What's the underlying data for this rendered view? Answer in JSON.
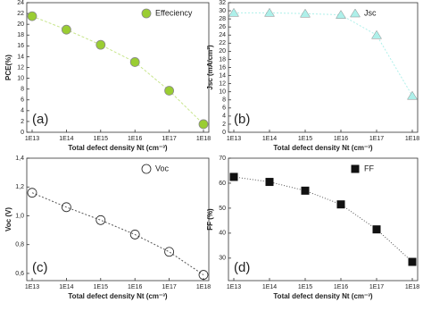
{
  "chart_data": [
    {
      "type": "line",
      "panel_label": "(a)",
      "xlabel": "Total defect density Nt (cm⁻³)",
      "ylabel": "PCE(%)",
      "categories": [
        "1E13",
        "1E14",
        "1E15",
        "1E16",
        "1E17",
        "1E18"
      ],
      "series": [
        {
          "name": "Effeciency",
          "color": "#9acd32",
          "values": [
            21.5,
            19,
            16.2,
            13,
            7.7,
            1.5
          ]
        }
      ],
      "marker": "circle",
      "marker_filled": true,
      "line_dash": "3,2",
      "line_color": "#c8e68c",
      "ylim": [
        0,
        24
      ],
      "yticks": [
        0,
        2,
        4,
        6,
        8,
        10,
        12,
        14,
        16,
        18,
        20,
        22,
        24
      ],
      "legend": "upper right"
    },
    {
      "type": "line",
      "panel_label": "(b)",
      "xlabel": "Total defect density Nt (cm⁻³)",
      "ylabel": "Jsc (mA/cm²)",
      "categories": [
        "1E13",
        "1E14",
        "1E15",
        "1E16",
        "1E17",
        "1E18"
      ],
      "series": [
        {
          "name": "Jsc",
          "color": "#aef0ea",
          "values": [
            29.5,
            29.5,
            29.3,
            29,
            24,
            9
          ]
        }
      ],
      "marker": "triangle",
      "marker_filled": true,
      "line_dash": "2,2",
      "line_color": "#aef0ea",
      "ylim": [
        0,
        32
      ],
      "yticks": [
        0,
        2,
        4,
        6,
        8,
        10,
        12,
        14,
        16,
        18,
        20,
        22,
        24,
        26,
        28,
        30,
        32
      ],
      "legend": "upper right"
    },
    {
      "type": "line",
      "panel_label": "(c)",
      "xlabel": "Total defect density Nt (cm⁻³)",
      "ylabel": "Voc (V)",
      "categories": [
        "1E13",
        "1E14",
        "1E15",
        "1E16",
        "1E17",
        "1E18"
      ],
      "series": [
        {
          "name": "Voc",
          "color": "#222222",
          "values": [
            1.16,
            1.06,
            0.97,
            0.87,
            0.75,
            0.59
          ]
        }
      ],
      "marker": "circle",
      "marker_filled": false,
      "line_dash": "2,2",
      "line_color": "#555555",
      "ylim": [
        0.55,
        1.4
      ],
      "yticks": [
        {
          "value": 0.6,
          "label": "0,6"
        },
        {
          "value": 0.8,
          "label": "0,8"
        },
        {
          "value": 1.0,
          "label": "1,0"
        },
        {
          "value": 1.2,
          "label": "1,2"
        },
        {
          "value": 1.4,
          "label": "1,4"
        }
      ],
      "legend": "upper right"
    },
    {
      "type": "line",
      "panel_label": "(d)",
      "xlabel": "Total defect density Nt (cm⁻³)",
      "ylabel": "FF (%)",
      "categories": [
        "1E13",
        "1E14",
        "1E15",
        "1E16",
        "1E17",
        "1E18"
      ],
      "series": [
        {
          "name": "FF",
          "color": "#111111",
          "values": [
            62.5,
            60.5,
            57,
            51.5,
            41.5,
            28.5
          ]
        }
      ],
      "marker": "square",
      "marker_filled": true,
      "line_dash": "1,2",
      "line_color": "#555555",
      "ylim": [
        21,
        70
      ],
      "yticks": [
        30,
        40,
        50,
        60,
        70
      ],
      "legend": "upper right"
    }
  ]
}
